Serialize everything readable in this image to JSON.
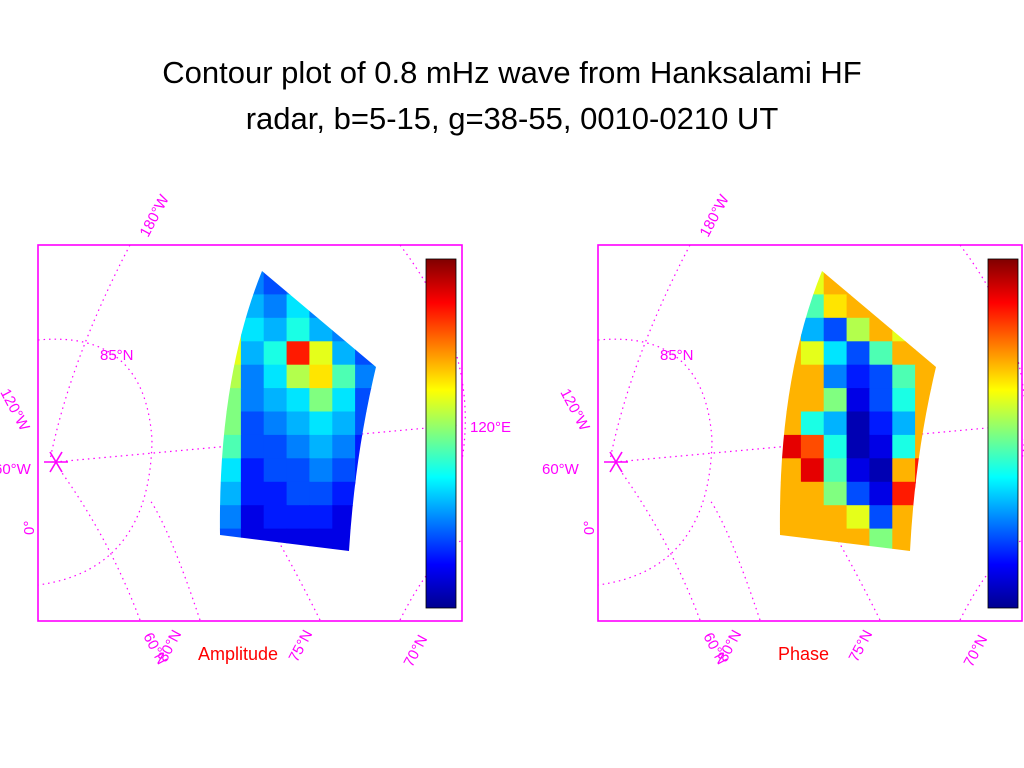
{
  "title": {
    "line1": "Contour plot of 0.8 mHz wave from Hanksalami HF",
    "line2": "radar, b=5-15, g=38-55,  0010-0210 UT"
  },
  "colors": {
    "frame": "#ff00ff",
    "caption": "#ff0000",
    "colormap": "jet"
  },
  "chart_data": [
    {
      "type": "heatmap",
      "title": "Amplitude",
      "map_labels": {
        "lon_top": "180°W",
        "lon_left": "120°W",
        "lon_mid": "60°W",
        "lon_low": "0°",
        "lon_right": "120°E",
        "lat_85": "85°N",
        "lat_60": "60°N",
        "lat_80": "80°N",
        "lat_75": "75°N",
        "lat_70": "70°N"
      },
      "colorbar": {
        "tick_label": "120°E"
      },
      "grid_cols": 7,
      "grid_rows": 12,
      "values": [
        [
          0.8,
          0.25,
          0.2,
          0.25,
          0.2,
          0.15,
          0.1
        ],
        [
          0.7,
          0.3,
          0.25,
          0.35,
          0.25,
          0.2,
          0.15
        ],
        [
          0.65,
          0.35,
          0.3,
          0.4,
          0.3,
          0.25,
          0.2
        ],
        [
          0.6,
          0.3,
          0.4,
          0.85,
          0.6,
          0.3,
          0.2
        ],
        [
          0.55,
          0.25,
          0.35,
          0.55,
          0.65,
          0.45,
          0.25
        ],
        [
          0.5,
          0.25,
          0.3,
          0.35,
          0.5,
          0.35,
          0.2
        ],
        [
          0.5,
          0.2,
          0.25,
          0.3,
          0.35,
          0.3,
          0.2
        ],
        [
          0.45,
          0.2,
          0.2,
          0.25,
          0.3,
          0.25,
          0.15
        ],
        [
          0.35,
          0.15,
          0.2,
          0.2,
          0.25,
          0.2,
          0.15
        ],
        [
          0.3,
          0.15,
          0.15,
          0.2,
          0.2,
          0.15,
          0.1
        ],
        [
          0.25,
          0.1,
          0.15,
          0.15,
          0.15,
          0.1,
          0.1
        ],
        [
          0.2,
          0.1,
          0.1,
          0.1,
          0.1,
          0.1,
          0.05
        ]
      ]
    },
    {
      "type": "heatmap",
      "title": "Phase",
      "map_labels": {
        "lon_top": "180°W",
        "lon_left": "120°W",
        "lon_mid": "60°W",
        "lon_low": "0°",
        "lat_85": "85°N",
        "lat_60": "60°N",
        "lat_80": "80°N",
        "lat_75": "75°N",
        "lat_70": "70°N"
      },
      "grid_cols": 7,
      "grid_rows": 12,
      "values": [
        [
          0.55,
          0.6,
          0.7,
          0.7,
          0.7,
          0.7,
          0.7
        ],
        [
          0.25,
          0.45,
          0.65,
          0.7,
          0.7,
          0.45,
          0.7
        ],
        [
          0.7,
          0.3,
          0.2,
          0.55,
          0.7,
          0.6,
          0.7
        ],
        [
          0.7,
          0.6,
          0.35,
          0.2,
          0.45,
          0.7,
          0.7
        ],
        [
          0.7,
          0.7,
          0.25,
          0.15,
          0.2,
          0.45,
          0.7
        ],
        [
          0.7,
          0.7,
          0.5,
          0.1,
          0.2,
          0.4,
          0.7
        ],
        [
          0.7,
          0.4,
          0.3,
          0.05,
          0.15,
          0.3,
          0.7
        ],
        [
          0.9,
          0.8,
          0.4,
          0.05,
          0.1,
          0.4,
          0.7
        ],
        [
          0.7,
          0.9,
          0.45,
          0.1,
          0.05,
          0.7,
          0.85
        ],
        [
          0.7,
          0.7,
          0.5,
          0.2,
          0.1,
          0.85,
          0.9
        ],
        [
          0.7,
          0.7,
          0.7,
          0.6,
          0.2,
          0.7,
          0.7
        ],
        [
          0.7,
          0.7,
          0.7,
          0.7,
          0.5,
          0.7,
          0.7
        ]
      ]
    }
  ]
}
